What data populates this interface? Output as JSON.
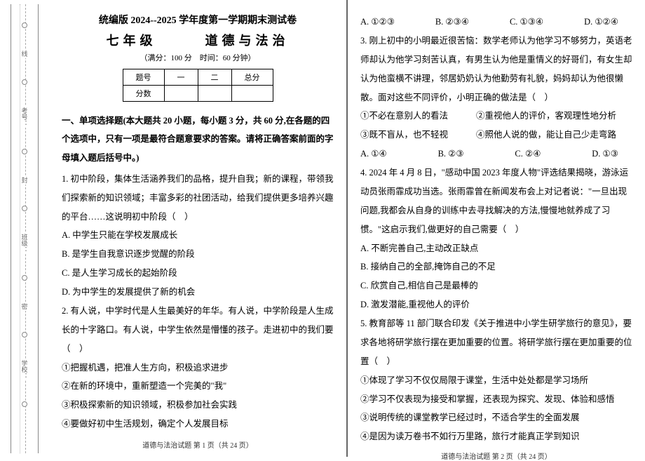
{
  "binding": {
    "labels": [
      "线",
      "考号：",
      "封",
      "班级：",
      "密",
      "学校："
    ]
  },
  "header": {
    "title_line1": "统编版 2024--2025 学年度第一学期期末测试卷",
    "grade": "七年级",
    "subject": "道德与法治",
    "subtitle": "（满分：100 分　时间：60 分钟）",
    "table": {
      "row1": [
        "题号",
        "一",
        "二",
        "总分"
      ],
      "row2": [
        "分数",
        "",
        "",
        ""
      ]
    }
  },
  "section1": {
    "heading": "一、单项选择题(本大题共 20 小题，每小题 3 分，共 60 分,在各题的四个选项中，只有一项是最符合题意要求的答案。请将正确答案前面的字母填入题后括号中。)"
  },
  "q1": {
    "stem": "1. 初中阶段，集体生活涵养我们的品格，提升自我；新的课程，带领我们探索新的知识领域；丰富多彩的社团活动，给我们提供更多培养兴趣的平台……这说明初中阶段（　）",
    "a": "A. 中学生只能在学校发展成长",
    "b": "B. 是学生自我意识逐步觉醒的阶段",
    "c": "C. 是人生学习成长的起始阶段",
    "d": "D. 为中学生的发展提供了新的机会"
  },
  "q2": {
    "stem": "2. 有人说，中学时代是人生最美好的年华。有人说，中学阶段是人生成长的十字路口。有人说，中学生依然是懵懂的孩子。走进初中的我们要（　）",
    "i1": "①把握机遇，把准人生方向，积极追求进步",
    "i2": "②在新的环境中，重新塑造一个完美的\"我\"",
    "i3": "③积极探索新的知识领域，积极参加社会实践",
    "i4": "④要做好初中生活规划，确定个人发展目标"
  },
  "q2_opts": {
    "a": "A. ①②③",
    "b": "B. ②③④",
    "c": "C. ①③④",
    "d": "D. ①②④"
  },
  "q3": {
    "stem": "3. 刚上初中的小明最近很苦恼：数学老师认为他学习不够努力，英语老师却认为他学习刻苦认真，有男生认为他是重情义的好哥们，有女生却认为他蛮横不讲理，邻居奶奶认为他勤劳有礼貌，妈妈却认为他很懒散。面对这些不同评价，小明正确的做法是（　）",
    "i1": "①不必在意别人的看法",
    "i2": "②重视他人的评价，客观理性地分析",
    "i3": "③既不盲从，也不轻视",
    "i4": "④照他人说的做，能让自己少走弯路",
    "opts": {
      "a": "A. ①④",
      "b": "B. ②③",
      "c": "C. ②④",
      "d": "D. ①③"
    }
  },
  "q4": {
    "stem": "4. 2024 年 4 月 8 日，\"感动中国 2023 年度人物\"评选结果揭晓，游泳运动员张雨霏成功当选。张雨霏曾在新闻发布会上对记者说：\"一旦出现问题,我都会从自身的训练中去寻找解决的方法,慢慢地就养成了习惯。\"这启示我们,做更好的自己需要（　）",
    "a": "A. 不断完善自己,主动改正缺点",
    "b": "B. 接纳自己的全部,掩饰自己的不足",
    "c": "C. 欣赏自己,相信自己是最棒的",
    "d": "D. 激发潜能,重视他人的评价"
  },
  "q5": {
    "stem": "5. 教育部等 11 部门联合印发《关于推进中小学生研学旅行的意见》，要求各地将研学旅行摆在更加重要的位置。将研学旅行摆在更加重要的位置（　）",
    "i1": "①体现了学习不仅仅局限于课堂，生活中处处都是学习场所",
    "i2": "②学习不仅表现为接受和掌握，还表现为探究、发现、体验和感悟",
    "i3": "③说明传统的课堂教学已经过时，不适合学生的全面发展",
    "i4": "④是因为读万卷书不如行万里路，旅行才能真正学到知识"
  },
  "footer": {
    "p1": "道德与法治试题 第 1 页（共 24 页）",
    "p2": "道德与法治试题 第 2 页（共 24 页）"
  }
}
